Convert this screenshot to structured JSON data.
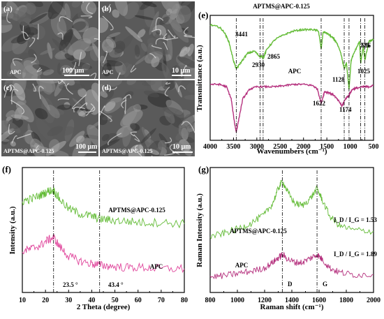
{
  "panels": {
    "a": {
      "label": "(a)",
      "sample": "APC",
      "scale": "100 μm"
    },
    "b": {
      "label": "(b)",
      "sample": "APC",
      "scale": "10 μm"
    },
    "c": {
      "label": "(c)",
      "sample": "APTMS@APC-0.125",
      "scale": "100 μm"
    },
    "d": {
      "label": "(d)",
      "sample": "APTMS@APC-0.125",
      "scale": "10 μm"
    }
  },
  "colors": {
    "green": "#62bb35",
    "magenta": "#b5317e",
    "pink": "#e0469c"
  },
  "chart_data": [
    {
      "id": "e",
      "panel_label": "(e)",
      "type": "line",
      "xlabel": "Wavenumbers (cm⁻¹)",
      "ylabel": "Transmittance (a.u.)",
      "xlim": [
        4000,
        500
      ],
      "x_ticks": [
        "4000",
        "3500",
        "3000",
        "2500",
        "2000",
        "1500",
        "1000",
        "500"
      ],
      "series": [
        {
          "name": "APTMS@APC-0.125",
          "color": "#62bb35",
          "x": [
            4000,
            3800,
            3700,
            3600,
            3500,
            3441,
            3350,
            3200,
            3050,
            2930,
            2900,
            2865,
            2780,
            2600,
            2400,
            2200,
            2000,
            1800,
            1680,
            1622,
            1580,
            1500,
            1400,
            1300,
            1200,
            1128,
            1080,
            1025,
            980,
            900,
            800,
            775,
            720,
            686,
            600,
            500
          ],
          "y": [
            0.92,
            0.9,
            0.86,
            0.78,
            0.62,
            0.55,
            0.6,
            0.68,
            0.7,
            0.65,
            0.66,
            0.64,
            0.72,
            0.8,
            0.84,
            0.87,
            0.88,
            0.88,
            0.87,
            0.72,
            0.86,
            0.85,
            0.82,
            0.78,
            0.68,
            0.55,
            0.6,
            0.38,
            0.62,
            0.7,
            0.78,
            0.6,
            0.74,
            0.62,
            0.78,
            0.8
          ]
        },
        {
          "name": "APC",
          "color": "#b5317e",
          "x": [
            4000,
            3800,
            3650,
            3550,
            3480,
            3441,
            3400,
            3300,
            3150,
            3000,
            2800,
            2600,
            2400,
            2200,
            2000,
            1800,
            1700,
            1622,
            1550,
            1450,
            1350,
            1250,
            1174,
            1100,
            1025,
            950,
            850,
            700,
            600,
            500
          ],
          "y": [
            0.42,
            0.42,
            0.4,
            0.3,
            0.1,
            0.02,
            0.1,
            0.3,
            0.38,
            0.4,
            0.4,
            0.4,
            0.41,
            0.42,
            0.42,
            0.41,
            0.38,
            0.26,
            0.36,
            0.35,
            0.33,
            0.28,
            0.24,
            0.3,
            0.33,
            0.38,
            0.39,
            0.4,
            0.4,
            0.41
          ]
        }
      ],
      "annotations": [
        "3441",
        "2930",
        "2865",
        "1622",
        "1174",
        "1128",
        "1025",
        "775",
        "686"
      ],
      "series_labels": [
        "APTMS@APC-0.125",
        "APC"
      ]
    },
    {
      "id": "f",
      "panel_label": "(f)",
      "type": "line",
      "xlabel": "2 Theta (degree)",
      "ylabel": "Intensity (a.u.)",
      "xlim": [
        10,
        80
      ],
      "x_ticks": [
        "10",
        "20",
        "30",
        "40",
        "50",
        "60",
        "70",
        "80"
      ],
      "series": [
        {
          "name": "APTMS@APC-0.125",
          "color": "#62bb35",
          "x": [
            10,
            14,
            18,
            21,
            23.5,
            26,
            30,
            35,
            40,
            43.4,
            48,
            55,
            62,
            70,
            80
          ],
          "y": [
            0.78,
            0.8,
            0.83,
            0.86,
            0.87,
            0.8,
            0.72,
            0.68,
            0.66,
            0.64,
            0.63,
            0.62,
            0.61,
            0.61,
            0.6
          ]
        },
        {
          "name": "APC",
          "color": "#e0469c",
          "x": [
            10,
            14,
            18,
            21,
            23.5,
            26,
            30,
            35,
            40,
            43.4,
            48,
            55,
            62,
            70,
            80
          ],
          "y": [
            0.38,
            0.4,
            0.43,
            0.47,
            0.49,
            0.42,
            0.34,
            0.3,
            0.28,
            0.27,
            0.26,
            0.25,
            0.25,
            0.24,
            0.24
          ]
        }
      ],
      "annotations": [
        "23.5 °",
        "43.4 °"
      ],
      "series_labels": [
        "APTMS@APC-0.125",
        "APC"
      ]
    },
    {
      "id": "g",
      "panel_label": "(g)",
      "type": "line",
      "xlabel": "Raman shift (cm⁻¹)",
      "ylabel": "Raman Intensity (a.u.)",
      "xlim": [
        800,
        2000
      ],
      "x_ticks": [
        "800",
        "1000",
        "1200",
        "1400",
        "1600",
        "1800",
        "2000"
      ],
      "series": [
        {
          "name": "APTMS@APC-0.125",
          "color": "#62bb35",
          "x": [
            800,
            900,
            1000,
            1100,
            1200,
            1260,
            1300,
            1330,
            1370,
            1420,
            1480,
            1540,
            1585,
            1620,
            1680,
            1750,
            1850,
            2000
          ],
          "y": [
            0.5,
            0.53,
            0.57,
            0.62,
            0.7,
            0.8,
            0.93,
            1.0,
            0.9,
            0.8,
            0.78,
            0.85,
            0.93,
            0.84,
            0.68,
            0.6,
            0.56,
            0.55
          ]
        },
        {
          "name": "APC",
          "color": "#b5317e",
          "x": [
            800,
            900,
            1000,
            1100,
            1200,
            1260,
            1300,
            1330,
            1370,
            1420,
            1480,
            1540,
            1585,
            1620,
            1680,
            1750,
            1850,
            2000
          ],
          "y": [
            0.14,
            0.15,
            0.17,
            0.19,
            0.22,
            0.27,
            0.31,
            0.34,
            0.3,
            0.27,
            0.27,
            0.31,
            0.34,
            0.3,
            0.22,
            0.18,
            0.16,
            0.16
          ]
        }
      ],
      "annotations": [
        "D",
        "G"
      ],
      "series_labels": [
        "APTMS@APC-0.125",
        "APC"
      ],
      "ratio_labels": [
        "I_D / I_G = 1.53",
        "I_D / I_G = 1.89"
      ]
    }
  ]
}
